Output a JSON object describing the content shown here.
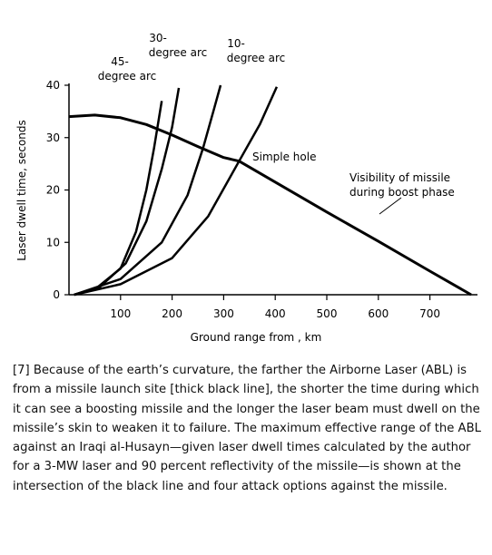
{
  "chart_data": {
    "type": "line",
    "xlabel": "Ground range from , km",
    "ylabel": "Laser dwell time, seconds",
    "xlim": [
      0,
      790
    ],
    "ylim": [
      0,
      40
    ],
    "xticks": [
      100,
      200,
      300,
      400,
      500,
      600,
      700
    ],
    "yticks": [
      0,
      10,
      20,
      30,
      40
    ],
    "series": [
      {
        "name": "Visibility of missile\nduring boost phase",
        "color": "#000000",
        "x": [
          0,
          50,
          100,
          150,
          200,
          250,
          300,
          330,
          400,
          500,
          600,
          700,
          780
        ],
        "values": [
          34,
          34.3,
          33.8,
          32.5,
          30.5,
          28.3,
          26.2,
          25.5,
          21.5,
          15.8,
          10.2,
          4.5,
          0
        ]
      },
      {
        "name": "45-\ndegree arc",
        "color": "#000000",
        "x": [
          10,
          50,
          100,
          130,
          150,
          165,
          180
        ],
        "values": [
          0,
          1,
          5,
          12,
          20,
          28,
          37
        ]
      },
      {
        "name": "30-\ndegree arc",
        "color": "#000000",
        "x": [
          10,
          60,
          110,
          150,
          180,
          200,
          213
        ],
        "values": [
          0,
          1.5,
          6,
          14,
          24,
          32,
          39.5
        ]
      },
      {
        "name": "10-\ndegree arc",
        "color": "#000000",
        "x": [
          10,
          100,
          180,
          230,
          260,
          280,
          294
        ],
        "values": [
          0,
          3,
          10,
          19,
          28,
          35,
          40
        ]
      },
      {
        "name": "Simple hole",
        "color": "#000000",
        "x": [
          10,
          100,
          200,
          270,
          330,
          370,
          403
        ],
        "values": [
          0,
          2,
          7,
          15,
          25.5,
          32.5,
          39.7
        ]
      }
    ],
    "caption": "[7] Because of the earth’s curvature, the farther the Airborne Laser (ABL) is from a missile launch site [thick black line], the shorter the time during which it can see a boosting missile and the longer the laser beam must dwell on the missile’s skin to weaken it to failure. The maximum effective range of the ABL against an Iraqi al-Husayn—given laser dwell times calculated by the author for a 3-MW laser and 90 percent reflectivity of the missile—is shown at the intersection of the black line and four attack options against the missile."
  }
}
